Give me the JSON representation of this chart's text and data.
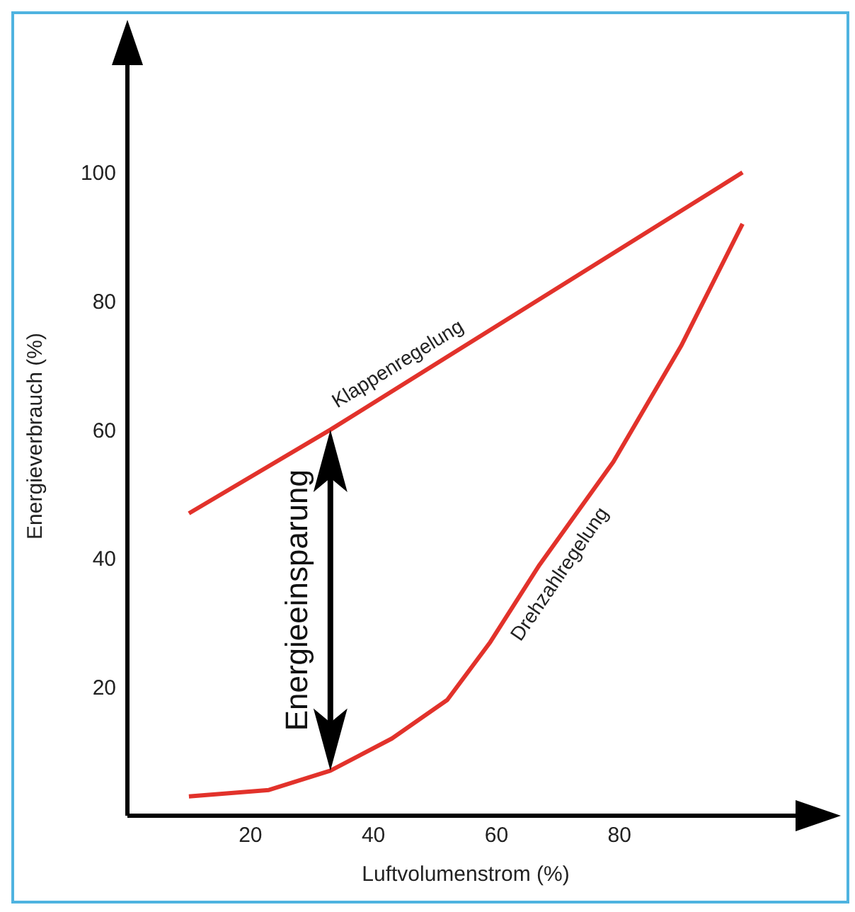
{
  "chart_data": {
    "type": "line",
    "xlabel": "Luftvolumenstrom (%)",
    "ylabel": "Energieverbrauch (%)",
    "xlim": [
      0,
      110
    ],
    "ylim": [
      0,
      118
    ],
    "xticks": [
      20,
      40,
      60,
      80
    ],
    "yticks": [
      20,
      40,
      60,
      80,
      100
    ],
    "marker": "none",
    "line_style": "solid",
    "series": [
      {
        "name": "Klappenregelung",
        "color": "#e2322b",
        "x": [
          10,
          33,
          100
        ],
        "values": [
          47,
          60,
          100
        ]
      },
      {
        "name": "Drehzahlregelung",
        "color": "#e2322b",
        "x": [
          10,
          23,
          33,
          43,
          52,
          59,
          67,
          79,
          90,
          100
        ],
        "values": [
          3,
          4,
          7,
          12,
          18,
          27,
          39,
          55,
          73,
          92
        ]
      }
    ],
    "annotations": [
      "Energieeinsparung"
    ]
  }
}
